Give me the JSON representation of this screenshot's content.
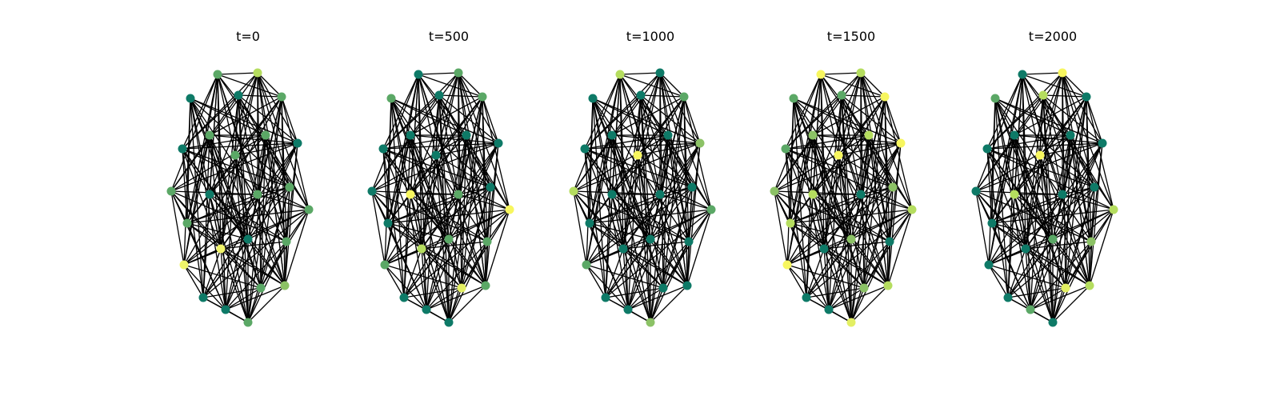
{
  "figure": {
    "panels": [
      {
        "title": "t=0",
        "node_colors": [
          "#5ba866",
          "#b5dd5f",
          "#0e7a67",
          "#0e7a67",
          "#5ba866",
          "#5ba866",
          "#5ba866",
          "#5ba866",
          "#0e7a67",
          "#0e7a67",
          "#5ba866",
          "#0e7a67",
          "#5ba866",
          "#5ba866",
          "#5ba866",
          "#5ba866",
          "#0e7a67",
          "#f0f46a",
          "#5ba866",
          "#f0f46a",
          "#0e7a67",
          "#8cc266",
          "#0e7a67",
          "#5ba866",
          "#5ba866"
        ]
      },
      {
        "title": "t=500",
        "node_colors": [
          "#0e7a67",
          "#5ba866",
          "#5ba866",
          "#0e7a67",
          "#5ba866",
          "#0e7a67",
          "#0e7a67",
          "#0e7a67",
          "#0e7a67",
          "#0e7a67",
          "#0e7a67",
          "#f7f65f",
          "#5ba866",
          "#0e7a67",
          "#f7f65f",
          "#0e7a67",
          "#5ba866",
          "#b5dd5f",
          "#5ba866",
          "#5ba866",
          "#0e7a67",
          "#5ba866",
          "#0e7a67",
          "#e3ef63",
          "#0e7a67"
        ]
      },
      {
        "title": "t=1000",
        "node_colors": [
          "#b5dd5f",
          "#0e7a67",
          "#0e7a67",
          "#0e7a67",
          "#5ba866",
          "#0e7a67",
          "#0e7a67",
          "#f7f65f",
          "#0e7a67",
          "#8cc266",
          "#b5dd5f",
          "#0e7a67",
          "#0e7a67",
          "#0e7a67",
          "#5ba866",
          "#0e7a67",
          "#0e7a67",
          "#0e7a67",
          "#0e7a67",
          "#5ba866",
          "#0e7a67",
          "#0e7a67",
          "#0e7a67",
          "#0e7a67",
          "#8cc266"
        ]
      },
      {
        "title": "t=1500",
        "node_colors": [
          "#f7f65f",
          "#b5dd5f",
          "#5ba866",
          "#5ba866",
          "#f7f65f",
          "#8cc266",
          "#b5dd5f",
          "#f7f65f",
          "#5ba866",
          "#f7f65f",
          "#8cc266",
          "#b5dd5f",
          "#0e7a67",
          "#8cc266",
          "#b5dd5f",
          "#b5dd5f",
          "#8cc266",
          "#0e7a67",
          "#0e7a67",
          "#f7f65f",
          "#0e7a67",
          "#b5dd5f",
          "#0e7a67",
          "#8cc266",
          "#e3ef63"
        ]
      },
      {
        "title": "t=2000",
        "node_colors": [
          "#0e7a67",
          "#f7f65f",
          "#5ba866",
          "#b5dd5f",
          "#0e7a67",
          "#0e7a67",
          "#0e7a67",
          "#f7f65f",
          "#0e7a67",
          "#0e7a67",
          "#0e7a67",
          "#b5dd5f",
          "#0e7a67",
          "#0e7a67",
          "#b5dd5f",
          "#0e7a67",
          "#5ba866",
          "#0e7a67",
          "#8cc266",
          "#0e7a67",
          "#0e7a67",
          "#b5dd5f",
          "#5ba866",
          "#e3ef63",
          "#0e7a67"
        ]
      }
    ]
  }
}
